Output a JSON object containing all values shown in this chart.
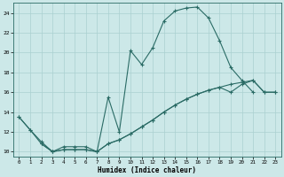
{
  "xlabel": "Humidex (Indice chaleur)",
  "bg_color": "#cce8e8",
  "line_color": "#2a6b65",
  "grid_color": "#aad0d0",
  "xlim": [
    -0.5,
    23.5
  ],
  "ylim": [
    9.5,
    25.0
  ],
  "xticks": [
    0,
    1,
    2,
    3,
    4,
    5,
    6,
    7,
    8,
    9,
    10,
    11,
    12,
    13,
    14,
    15,
    16,
    17,
    18,
    19,
    20,
    21,
    22,
    23
  ],
  "yticks": [
    10,
    12,
    14,
    16,
    18,
    20,
    22,
    24
  ],
  "line1_x": [
    0,
    1,
    2,
    3,
    4,
    5,
    6,
    7,
    8,
    9,
    10,
    11,
    12,
    13,
    14,
    15,
    16,
    17,
    18,
    19,
    20,
    21
  ],
  "line1_y": [
    13.5,
    12.2,
    11.0,
    10.0,
    10.5,
    10.5,
    10.5,
    10.0,
    15.5,
    12.0,
    20.2,
    18.8,
    20.5,
    23.2,
    24.2,
    24.5,
    24.6,
    23.5,
    21.2,
    18.5,
    17.2,
    16.0
  ],
  "line2_x": [
    0,
    1,
    2,
    3,
    4,
    5,
    6,
    7,
    8,
    9,
    10,
    11,
    12,
    13,
    14,
    15,
    16,
    17,
    18,
    19,
    20,
    21,
    22,
    23
  ],
  "line2_y": [
    13.5,
    12.2,
    10.8,
    10.0,
    10.2,
    10.2,
    10.2,
    10.0,
    10.8,
    11.2,
    11.8,
    12.5,
    13.2,
    14.0,
    14.7,
    15.3,
    15.8,
    16.2,
    16.5,
    16.8,
    17.0,
    17.2,
    16.0,
    16.0
  ],
  "line3_x": [
    2,
    3,
    4,
    5,
    6,
    7,
    8,
    9,
    10,
    11,
    12,
    13,
    14,
    15,
    16,
    17,
    18,
    19,
    20,
    21,
    22,
    23
  ],
  "line3_y": [
    10.8,
    10.0,
    10.2,
    10.2,
    10.2,
    10.0,
    10.8,
    11.2,
    11.8,
    12.5,
    13.2,
    14.0,
    14.7,
    15.3,
    15.8,
    16.2,
    16.5,
    16.0,
    16.8,
    17.2,
    16.0,
    16.0
  ]
}
